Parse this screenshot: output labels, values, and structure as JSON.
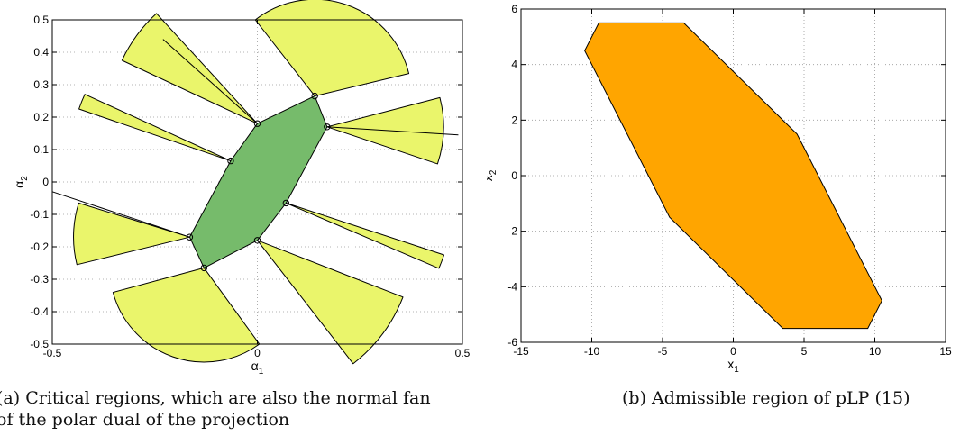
{
  "chart_data": [
    {
      "type": "polygon-regions",
      "xlabel_main": "α",
      "xlabel_sub": "1",
      "ylabel_main": "α",
      "ylabel_sub": "2",
      "xlim": [
        -0.5,
        0.5
      ],
      "ylim": [
        -0.5,
        0.5
      ],
      "xticks": [
        -0.5,
        0,
        0.5
      ],
      "xtick_labels": [
        "-0.5",
        "0",
        "0.5"
      ],
      "yticks": [
        0.5,
        0.4,
        0.3,
        0.2,
        0.1,
        0,
        -0.1,
        -0.2,
        -0.3,
        -0.4,
        -0.5
      ],
      "ytick_labels": [
        "0.5",
        "0.4",
        "0.3",
        "0.2",
        "0.1",
        "0",
        "-0.1",
        "-0.2",
        "-0.3",
        "-0.4",
        "-0.5"
      ],
      "grid": true,
      "caption": "(a) Critical regions, which are also the normal fan of the polar dual of the projection",
      "caption_lines": [
        "(a)  Critical regions, which are also the normal fan",
        "of the polar dual of the projection"
      ],
      "central_region_color": "#76bb6b",
      "region_color": "#eaf56b",
      "central_region": [
        [
          0.0,
          0.18
        ],
        [
          0.14,
          0.265
        ],
        [
          0.17,
          0.17
        ],
        [
          0.07,
          -0.065
        ],
        [
          0.0,
          -0.18
        ],
        [
          -0.13,
          -0.265
        ],
        [
          -0.165,
          -0.17
        ],
        [
          -0.065,
          0.065
        ]
      ],
      "vertices": [
        [
          0.0,
          0.18
        ],
        [
          0.14,
          0.265
        ],
        [
          0.17,
          0.17
        ],
        [
          0.07,
          -0.065
        ],
        [
          0.0,
          -0.18
        ],
        [
          -0.13,
          -0.265
        ],
        [
          -0.165,
          -0.17
        ],
        [
          -0.065,
          0.065
        ]
      ],
      "wedges": [
        {
          "apex": [
            0.14,
            0.265
          ],
          "p1": [
            -0.005,
            0.5
          ],
          "p2": [
            0.355,
            0.33
          ]
        },
        {
          "apex": [
            0.17,
            0.17
          ],
          "p1": [
            0.445,
            0.26
          ],
          "p2": [
            0.5,
            0.03
          ]
        },
        {
          "apex": [
            0.07,
            -0.065
          ],
          "p1": [
            0.455,
            -0.225
          ],
          "p2": [
            0.44,
            -0.265
          ]
        },
        {
          "apex": [
            0.0,
            -0.18
          ],
          "p1": [
            0.355,
            -0.355
          ],
          "p2": [
            0.175,
            -0.465
          ]
        },
        {
          "apex": [
            -0.13,
            -0.265
          ],
          "p1": [
            0.005,
            -0.5
          ],
          "p2": [
            -0.365,
            -0.345
          ]
        },
        {
          "apex": [
            -0.165,
            -0.17
          ],
          "p1": [
            -0.44,
            -0.255
          ],
          "p2": [
            -0.5,
            -0.04
          ]
        },
        {
          "apex": [
            -0.065,
            0.065
          ],
          "p1": [
            -0.435,
            0.225
          ],
          "p2": [
            -0.42,
            0.27
          ]
        },
        {
          "apex": [
            0.0,
            0.18
          ],
          "p1": [
            -0.33,
            0.375
          ],
          "p2": [
            -0.21,
            0.47
          ]
        }
      ],
      "inner_lines": [
        {
          "from": [
            0.17,
            0.17
          ],
          "to": [
            0.49,
            0.145
          ]
        },
        {
          "from": [
            -0.165,
            -0.17
          ],
          "to": [
            -0.5,
            -0.03
          ]
        },
        {
          "from": [
            0.0,
            0.18
          ],
          "to": [
            -0.23,
            0.44
          ]
        }
      ]
    },
    {
      "type": "polygon",
      "xlabel_main": "x",
      "xlabel_sub": "1",
      "ylabel_main": "x",
      "ylabel_sub": "2",
      "xlim": [
        -15,
        15
      ],
      "ylim": [
        -6,
        6
      ],
      "xticks": [
        -15,
        -10,
        -5,
        0,
        5,
        10,
        15
      ],
      "xtick_labels": [
        "-15",
        "-10",
        "-5",
        "0",
        "5",
        "10",
        "15"
      ],
      "yticks": [
        6,
        4,
        2,
        0,
        -2,
        -4,
        -6
      ],
      "ytick_labels": [
        "6",
        "4",
        "2",
        "0",
        "-2",
        "-4",
        "-6"
      ],
      "grid": true,
      "caption": "(b)  Admissible region of pLP (15)",
      "fill_color": "#ffa500",
      "polygon": [
        [
          -9.5,
          5.5
        ],
        [
          -3.5,
          5.5
        ],
        [
          4.5,
          1.5
        ],
        [
          10.5,
          -4.5
        ],
        [
          9.5,
          -5.5
        ],
        [
          3.5,
          -5.5
        ],
        [
          -4.5,
          -1.5
        ],
        [
          -10.5,
          4.5
        ]
      ]
    }
  ]
}
